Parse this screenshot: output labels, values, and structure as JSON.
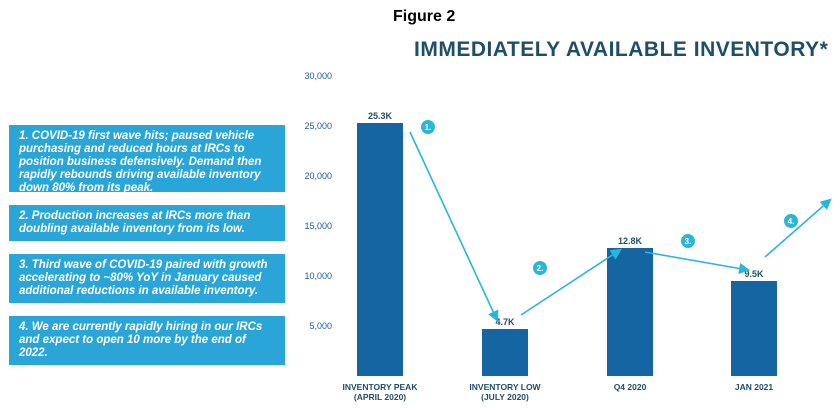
{
  "figure_label": "Figure 2",
  "colors": {
    "bar": "#1565a2",
    "accent": "#29b6d9",
    "note_bg": "#2aa5d8",
    "title": "#1f4f68",
    "tick": "#1a5a99"
  },
  "notes": [
    "1. COVID-19 first wave hits; paused vehicle purchasing and reduced hours at IRCs to position business defensively. Demand then rapidly rebounds driving available inventory down 80% from its peak.",
    "2. Production increases at IRCs more than doubling available inventory from its low.",
    "3. Third wave of COVID-19 paired with growth accelerating to ~80% YoY in January caused additional reductions in available inventory.",
    "4. We are currently rapidly hiring in our IRCs and expect to open 10 more by the end of 2022."
  ],
  "chart_data": {
    "type": "bar",
    "title": "IMMEDIATELY AVAILABLE INVENTORY*",
    "categories": [
      [
        "INVENTORY PEAK",
        "(APRIL 2020)"
      ],
      [
        "INVENTORY LOW",
        "(JULY 2020)"
      ],
      [
        "Q4 2020"
      ],
      [
        "JAN 2021"
      ]
    ],
    "values": [
      25300,
      4700,
      12800,
      9500
    ],
    "data_labels": [
      "25.3K",
      "4.7K",
      "12.8K",
      "9.5K"
    ],
    "ylim": [
      0,
      30000
    ],
    "yticks": [
      5000,
      10000,
      15000,
      20000,
      25000,
      30000
    ],
    "ytick_labels": [
      "5,000",
      "10,000",
      "15,000",
      "20,000",
      "25,000",
      "30,000"
    ],
    "grid": false,
    "annotations": [
      "1.",
      "2.",
      "3.",
      "4."
    ]
  }
}
